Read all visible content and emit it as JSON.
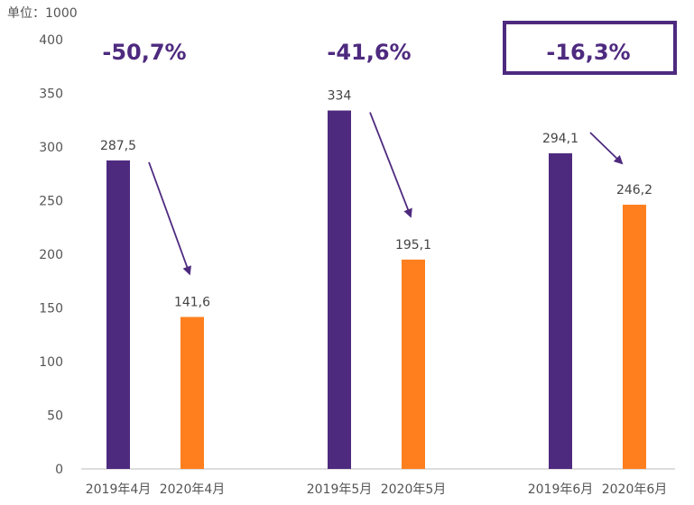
{
  "chart_data": {
    "type": "bar",
    "unit_label": "单位：1000",
    "ylim": [
      0,
      400
    ],
    "yticks": [
      0,
      50,
      100,
      150,
      200,
      250,
      300,
      350,
      400
    ],
    "categories": [
      "2019年4月",
      "2020年4月",
      "2019年5月",
      "2020年5月",
      "2019年6月",
      "2020年6月"
    ],
    "values": [
      287.5,
      141.6,
      334,
      195.1,
      294.1,
      246.2
    ],
    "value_labels": [
      "287,5",
      "141,6",
      "334",
      "195,1",
      "294,1",
      "246,2"
    ],
    "bar_colors": [
      "#4e2a7f",
      "#ff7f1e",
      "#4e2a7f",
      "#ff7f1e",
      "#4e2a7f",
      "#ff7f1e"
    ],
    "changes": [
      {
        "label": "-50,7%",
        "boxed": false
      },
      {
        "label": "-41,6%",
        "boxed": false
      },
      {
        "label": "-16,3%",
        "boxed": true
      }
    ],
    "grid": false,
    "colors": {
      "purple": "#4e2a7f",
      "orange": "#ff7f1e",
      "axis": "#bbbbbb",
      "text": "#555555"
    }
  }
}
